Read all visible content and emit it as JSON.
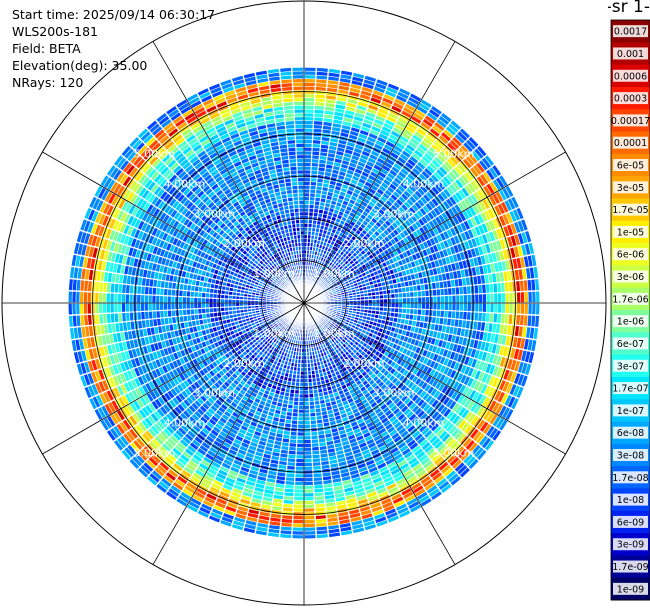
{
  "info": {
    "start_time": "Start time: 2025/09/14 06:30:17",
    "instrument": "WLS200s-181",
    "field": "Field: BETA",
    "elevation": "Elevation(deg): 35.00",
    "nrays": "NRays: 120"
  },
  "colorbar": {
    "unit_fragment": "-1 sr-",
    "labels": [
      "0.0017",
      "0.001",
      "0.0006",
      "0.0003",
      "0.00017",
      "0.0001",
      "6e-05",
      "3e-05",
      "1.7e-05",
      "1e-05",
      "6e-06",
      "3e-06",
      "1.7e-06",
      "1e-06",
      "6e-07",
      "3e-07",
      "1.7e-07",
      "1e-07",
      "6e-08",
      "3e-08",
      "1.7e-08",
      "1e-08",
      "6e-09",
      "3e-09",
      "1.7e-09",
      "1e-09"
    ],
    "colors": [
      "#8b0000",
      "#b30000",
      "#d90000",
      "#ff1a00",
      "#ff4500",
      "#ff6a00",
      "#ff8c00",
      "#ffa500",
      "#ffc800",
      "#ffee00",
      "#eeff22",
      "#ccff44",
      "#a8ff66",
      "#7dff99",
      "#50ffcc",
      "#22ffee",
      "#00e5ff",
      "#00c8ff",
      "#00a8ff",
      "#0088ff",
      "#0066ff",
      "#0044ff",
      "#0022ee",
      "#0000cc",
      "#000099",
      "#000066"
    ]
  },
  "range_labels": [
    "1.00km",
    "2.00km",
    "3.00km",
    "4.00km",
    "5.00km"
  ],
  "chart_data": {
    "type": "heatmap",
    "projection": "polar (PPI scan)",
    "field": "BETA",
    "elevation_deg": 35.0,
    "n_rays": 120,
    "range_rings_km": [
      1,
      2,
      3,
      4,
      5
    ],
    "max_range_km": 5.6,
    "color_scale": "log",
    "color_range": [
      1e-09,
      0.0017
    ],
    "description_of_pattern": [
      {
        "range_km": [
          0.0,
          2.2
        ],
        "typical_value": 1e-08
      },
      {
        "range_km": [
          2.2,
          4.3
        ],
        "typical_value": 3e-08
      },
      {
        "range_km": [
          4.3,
          5.2
        ],
        "typical_value": 3e-07
      },
      {
        "range_km": [
          5.0,
          5.3
        ],
        "typical_value": 3e-06
      },
      {
        "range_km": [
          5.3,
          5.6
        ],
        "typical_value": 3e-08
      }
    ]
  }
}
